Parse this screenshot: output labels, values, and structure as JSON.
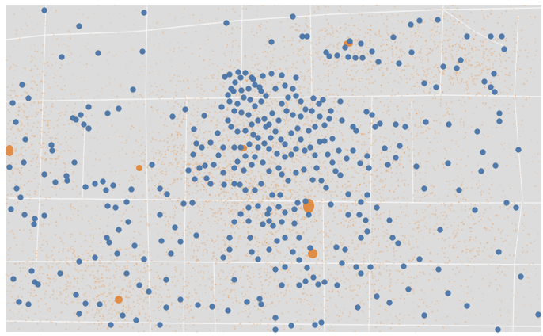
{
  "map": {
    "colors": {
      "background": "#dcdcdc",
      "border": "#ffffff",
      "road": "#f4f4f4",
      "density": "#ee8a2e",
      "hotspot": "#e0741a",
      "marker": "#4f7aab",
      "marker_stroke": "#3f6896"
    },
    "layers": [
      "street-grid",
      "orange-density-points",
      "blue-location-markers"
    ]
  }
}
